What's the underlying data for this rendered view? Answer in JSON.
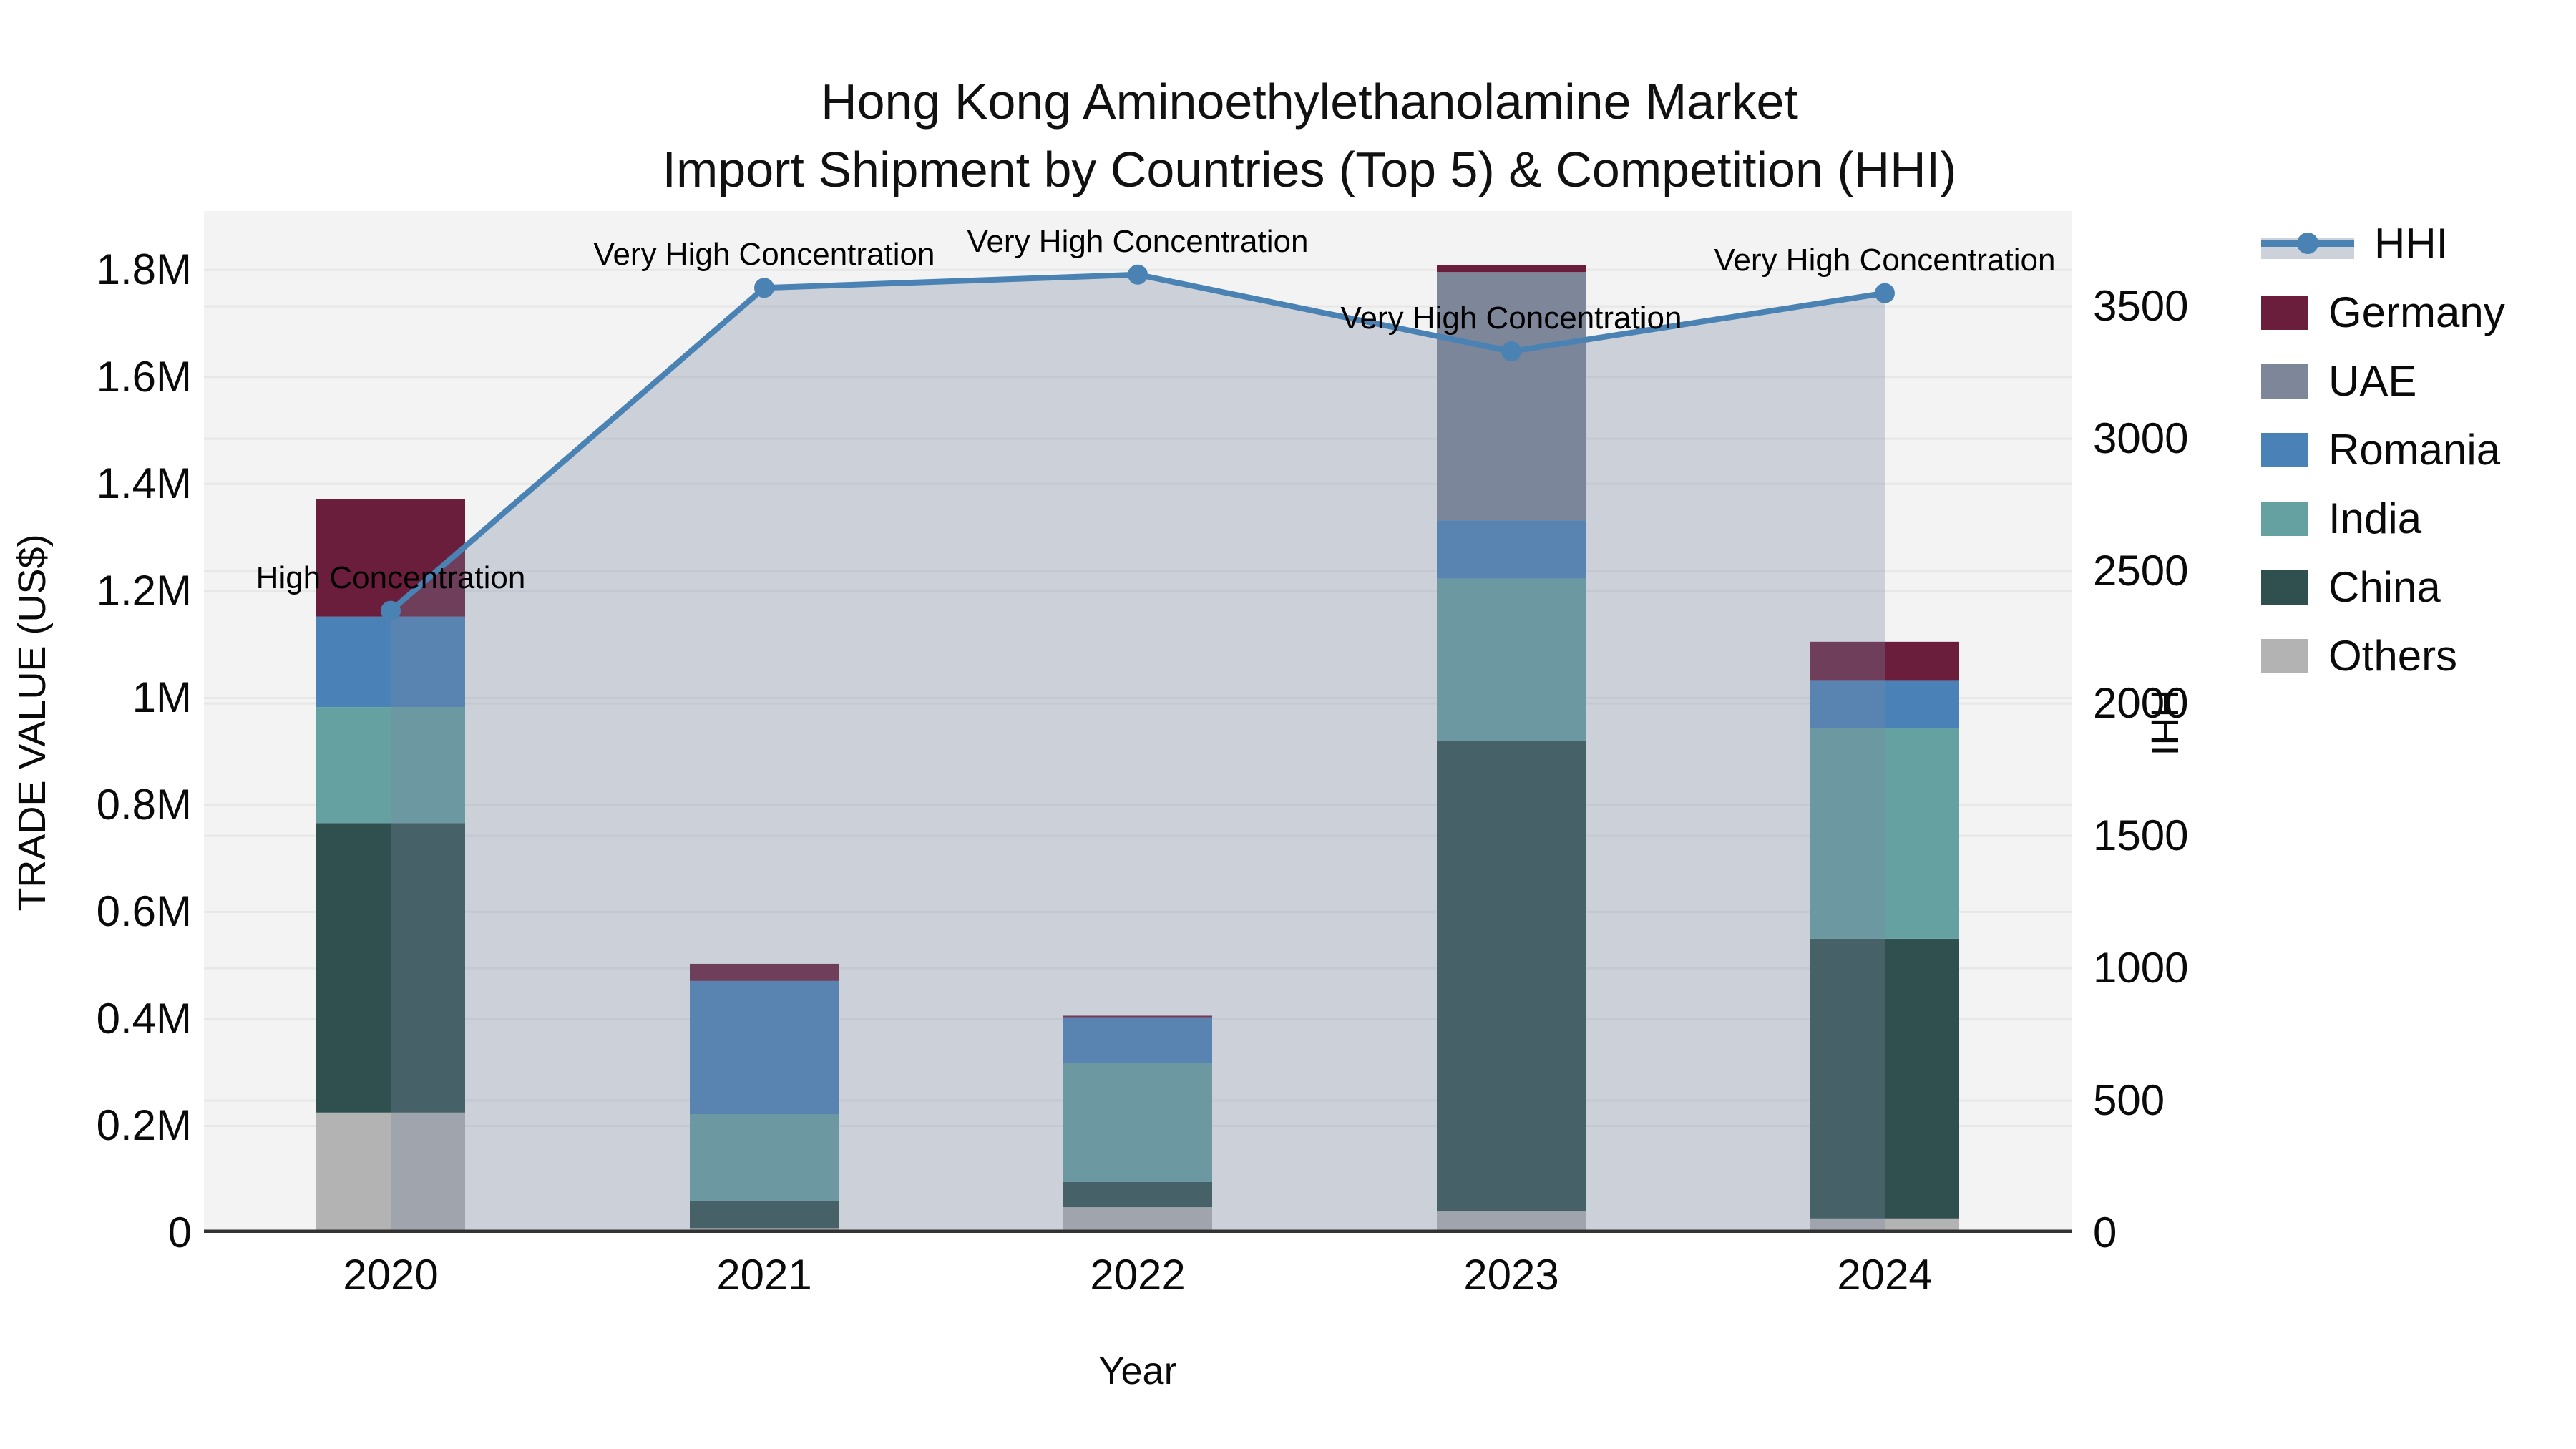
{
  "title": {
    "line1": "Hong Kong Aminoethylethanolamine Market",
    "line2": "Import Shipment by Countries (Top 5) & Competition (HHI)"
  },
  "axes": {
    "x_label": "Year",
    "y_left_label": "TRADE VALUE (US$)",
    "y_right_label": "HHI",
    "y_left_max": 1910000,
    "y_right_max": 3860,
    "y_left_ticks": [
      {
        "label": "0",
        "value": 0
      },
      {
        "label": "0.2M",
        "value": 200000
      },
      {
        "label": "0.4M",
        "value": 400000
      },
      {
        "label": "0.6M",
        "value": 600000
      },
      {
        "label": "0.8M",
        "value": 800000
      },
      {
        "label": "1M",
        "value": 1000000
      },
      {
        "label": "1.2M",
        "value": 1200000
      },
      {
        "label": "1.4M",
        "value": 1400000
      },
      {
        "label": "1.6M",
        "value": 1600000
      },
      {
        "label": "1.8M",
        "value": 1800000
      }
    ],
    "y_right_ticks": [
      {
        "label": "0",
        "value": 0
      },
      {
        "label": "500",
        "value": 500
      },
      {
        "label": "1000",
        "value": 1000
      },
      {
        "label": "1500",
        "value": 1500
      },
      {
        "label": "2000",
        "value": 2000
      },
      {
        "label": "2500",
        "value": 2500
      },
      {
        "label": "3000",
        "value": 3000
      },
      {
        "label": "3500",
        "value": 3500
      }
    ]
  },
  "chart_data": {
    "type": "composite",
    "subtypes": [
      "stacked-bar",
      "line-with-area"
    ],
    "categories": [
      "2020",
      "2021",
      "2022",
      "2023",
      "2024"
    ],
    "bar_stack_order_bottom_to_top": [
      "Others",
      "China",
      "India",
      "Romania",
      "UAE",
      "Germany"
    ],
    "series": [
      {
        "name": "Others",
        "values": [
          225000,
          9000,
          48000,
          40000,
          27000
        ]
      },
      {
        "name": "China",
        "values": [
          541000,
          50000,
          47000,
          880000,
          523000
        ]
      },
      {
        "name": "India",
        "values": [
          217000,
          163000,
          222000,
          303000,
          393000
        ]
      },
      {
        "name": "Romania",
        "values": [
          169000,
          249000,
          86000,
          109000,
          89000
        ]
      },
      {
        "name": "UAE",
        "values": [
          0,
          0,
          0,
          464000,
          0
        ]
      },
      {
        "name": "Germany",
        "values": [
          220000,
          32000,
          3000,
          13000,
          73000
        ]
      }
    ],
    "line_series": {
      "name": "HHI",
      "values": [
        2350,
        3570,
        3620,
        3330,
        3550
      ]
    },
    "annotations": [
      {
        "category": "2020",
        "text": "High Concentration"
      },
      {
        "category": "2021",
        "text": "Very High Concentration"
      },
      {
        "category": "2022",
        "text": "Very High Concentration"
      },
      {
        "category": "2023",
        "text": "Very High Concentration"
      },
      {
        "category": "2024",
        "text": "Very High Concentration"
      }
    ],
    "legend_position": "right",
    "grid": true
  },
  "legend": {
    "items": [
      {
        "label": "HHI",
        "type": "line"
      },
      {
        "label": "Germany",
        "type": "patch",
        "color": "#6b1d3c"
      },
      {
        "label": "UAE",
        "type": "patch",
        "color": "#7d8799"
      },
      {
        "label": "Romania",
        "type": "patch",
        "color": "#4a82b8"
      },
      {
        "label": "India",
        "type": "patch",
        "color": "#66a1a2"
      },
      {
        "label": "China",
        "type": "patch",
        "color": "#2f504e"
      },
      {
        "label": "Others",
        "type": "patch",
        "color": "#b3b3b3"
      }
    ]
  },
  "colors": {
    "Germany": "#6b1d3c",
    "UAE": "#7d8799",
    "Romania": "#4a82b8",
    "India": "#66a1a2",
    "China": "#2f504e",
    "Others": "#b3b3b3",
    "hhi_line": "#4a82b4",
    "hhi_area_fill": "rgba(120,135,160,0.32)",
    "plot_background": "#f3f3f3",
    "gridline": "#e7e7e7",
    "axis_spine": "#333333"
  }
}
